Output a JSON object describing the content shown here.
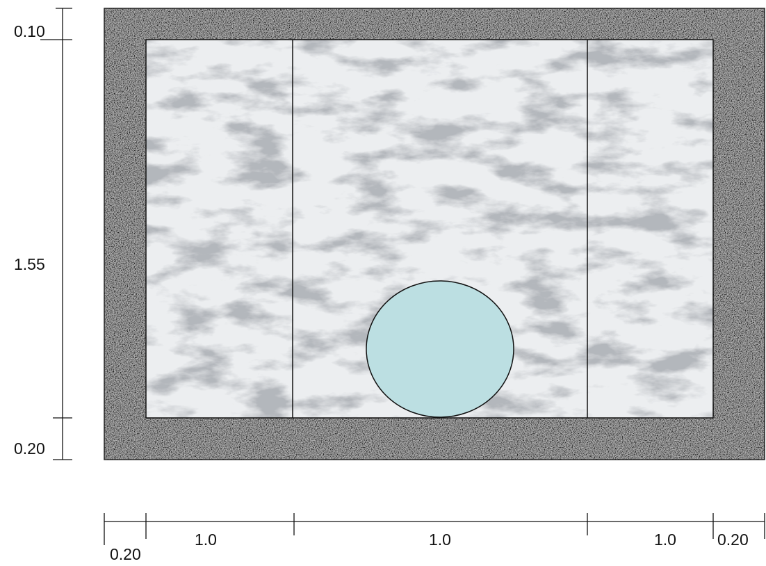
{
  "vertical_dimensions": [
    "0.10",
    "1.55",
    "0.20"
  ],
  "horizontal_dimensions": [
    "0.20",
    "1.0",
    "1.0",
    "1.0",
    "0.20"
  ]
}
